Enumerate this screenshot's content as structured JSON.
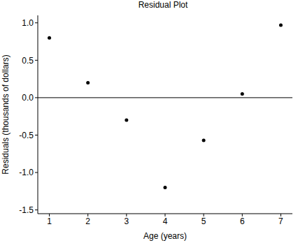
{
  "chart_data": {
    "type": "scatter",
    "title": "Residual Plot",
    "x_label": "Age (years)",
    "y_label": "Residuals (thousands of dollars)",
    "x": [
      1,
      2,
      3,
      4,
      5,
      6,
      7
    ],
    "values": [
      0.8,
      0.2,
      -0.3,
      -1.2,
      -0.57,
      0.05,
      0.97
    ],
    "color": "#000000",
    "marker": "circle",
    "xlim": [
      0.7,
      7.3
    ],
    "xticks": [
      1,
      2,
      3,
      4,
      5,
      6,
      7
    ],
    "ylim": [
      -1.55,
      1.1
    ],
    "yticks": [
      {
        "value": -1.5,
        "label": "-1.5"
      },
      {
        "value": -1,
        "label": "-1.0"
      },
      -0.5,
      {
        "value": 0,
        "label": "0.0"
      },
      0.5,
      {
        "value": 1,
        "label": "1.0"
      }
    ],
    "hlines": [
      0
    ],
    "grid": false
  }
}
